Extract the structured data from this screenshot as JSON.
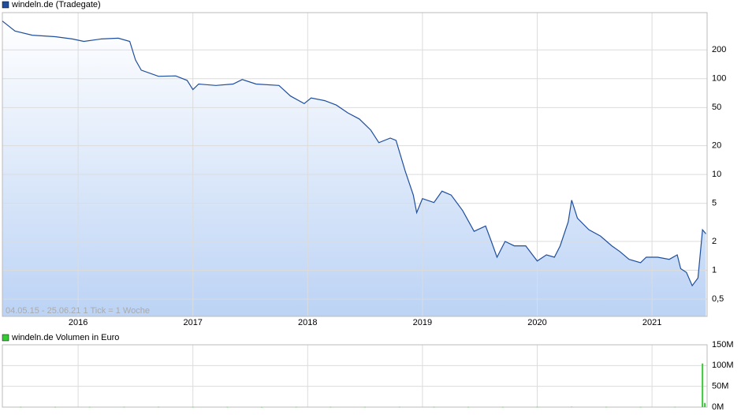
{
  "chart_data": [
    {
      "type": "line",
      "title": "windeln.de (Tradegate)",
      "annotation": "04.05.15 - 25.06.21   1 Tick = 1 Woche",
      "log_scale": true,
      "grid": true,
      "color": "#1f4e9c",
      "legend": "upper left",
      "x": [
        2015.34,
        2015.45,
        2015.6,
        2015.8,
        2015.95,
        2016.05,
        2016.2,
        2016.35,
        2016.45,
        2016.5,
        2016.55,
        2016.7,
        2016.85,
        2016.95,
        2017.0,
        2017.05,
        2017.2,
        2017.35,
        2017.43,
        2017.55,
        2017.75,
        2017.85,
        2017.97,
        2018.03,
        2018.15,
        2018.25,
        2018.35,
        2018.45,
        2018.55,
        2018.62,
        2018.72,
        2018.77,
        2018.85,
        2018.92,
        2018.95,
        2019.0,
        2019.1,
        2019.17,
        2019.25,
        2019.35,
        2019.45,
        2019.55,
        2019.6,
        2019.65,
        2019.72,
        2019.8,
        2019.9,
        2019.95,
        2020.0,
        2020.08,
        2020.15,
        2020.2,
        2020.27,
        2020.3,
        2020.35,
        2020.45,
        2020.55,
        2020.65,
        2020.72,
        2020.8,
        2020.9,
        2020.95,
        2021.05,
        2021.15,
        2021.22,
        2021.25,
        2021.3,
        2021.35,
        2021.4,
        2021.44,
        2021.47
      ],
      "series": [
        {
          "name": "windeln.de (Tradegate)",
          "color": "#1f4e9c",
          "values": [
            400,
            315,
            285,
            275,
            260,
            245,
            260,
            265,
            245,
            157,
            123,
            106,
            107,
            96,
            77,
            88,
            85,
            88,
            98,
            88,
            85,
            66,
            55,
            63,
            59,
            53,
            44,
            38,
            29,
            21.5,
            24,
            22.7,
            10.8,
            6.1,
            4,
            5.6,
            5.1,
            6.7,
            6.1,
            4.2,
            2.55,
            2.9,
            2,
            1.37,
            2,
            1.8,
            1.8,
            1.5,
            1.25,
            1.45,
            1.37,
            1.8,
            3.2,
            5.4,
            3.5,
            2.65,
            2.28,
            1.8,
            1.57,
            1.3,
            1.2,
            1.37,
            1.37,
            1.3,
            1.45,
            1.04,
            0.95,
            0.69,
            0.83,
            2.65,
            2.4
          ]
        }
      ],
      "xlim": [
        2015.34,
        2021.48
      ],
      "xticks": [
        2016,
        2017,
        2018,
        2019,
        2020,
        2021
      ],
      "ylim": [
        0.33,
        490
      ],
      "yticks": [
        {
          "value": 0.5,
          "label": "0,5"
        },
        1,
        2,
        5,
        10,
        20,
        50,
        100,
        200
      ]
    },
    {
      "type": "bar",
      "title": "windeln.de Volumen in Euro",
      "grid": true,
      "color": "#33cc33",
      "legend": "upper left",
      "x": [
        2015.5,
        2015.8,
        2016.1,
        2016.4,
        2016.7,
        2017.0,
        2017.3,
        2017.6,
        2017.9,
        2018.2,
        2018.5,
        2018.8,
        2019.1,
        2019.4,
        2019.7,
        2020.0,
        2020.3,
        2020.6,
        2020.9,
        2021.2,
        2021.44,
        2021.46
      ],
      "values": [
        400000,
        300000,
        300000,
        500000,
        600000,
        300000,
        300000,
        200000,
        300000,
        400000,
        300000,
        600000,
        500000,
        300000,
        300000,
        400000,
        800000,
        400000,
        300000,
        500000,
        105000000,
        10000000
      ],
      "xlim": [
        2015.34,
        2021.48
      ],
      "xticks": [
        2016,
        2017,
        2018,
        2019,
        2020,
        2021
      ],
      "ylim": [
        0,
        150000000
      ],
      "yticks": [
        {
          "value": 0,
          "label": "0M"
        },
        {
          "value": 50000000,
          "label": "50M"
        },
        {
          "value": 100000000,
          "label": "100M"
        },
        {
          "value": 150000000,
          "label": "150M"
        }
      ]
    }
  ]
}
